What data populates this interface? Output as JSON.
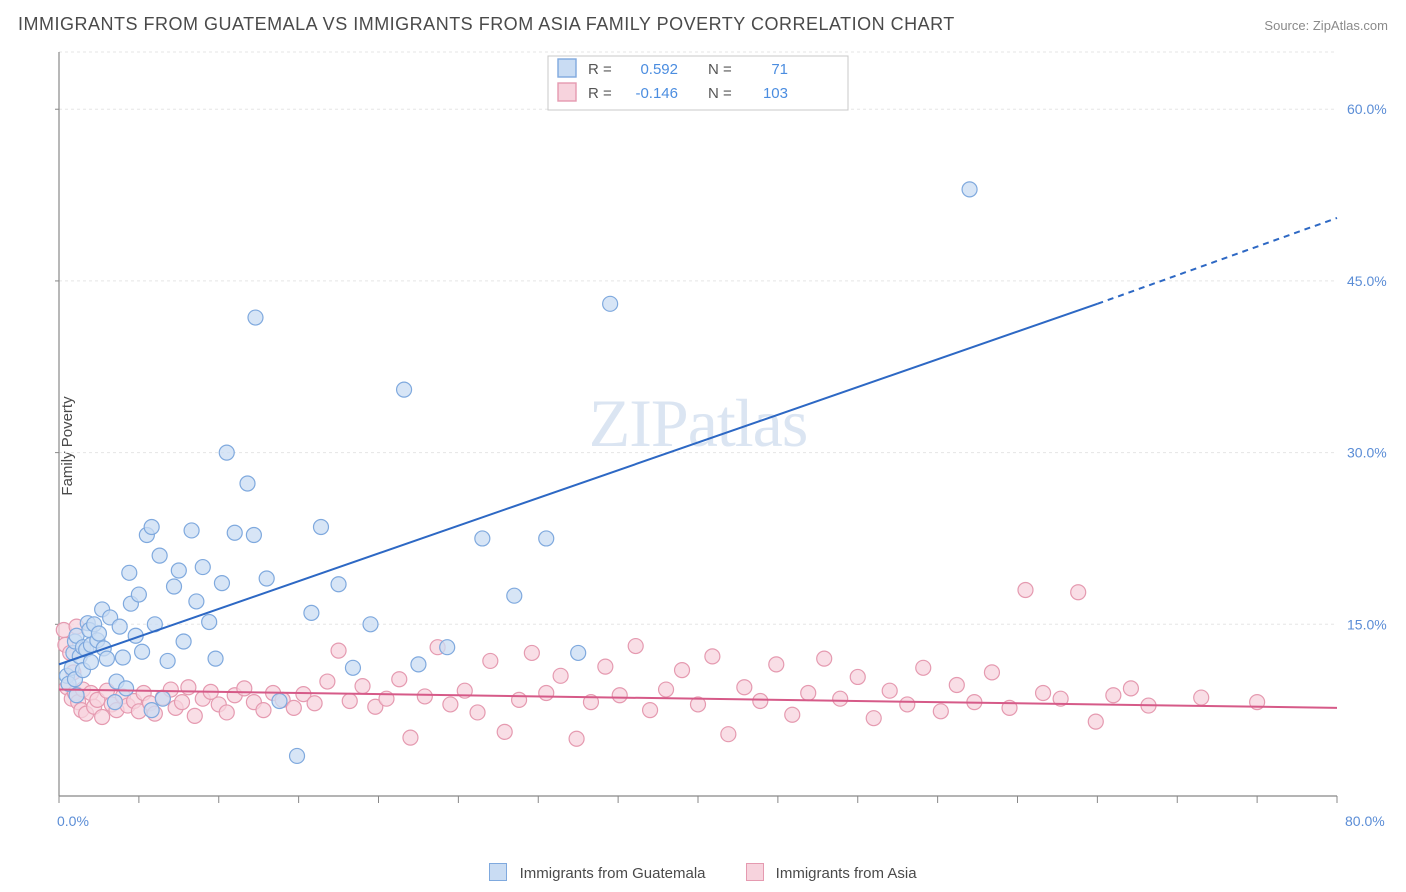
{
  "header": {
    "title": "IMMIGRANTS FROM GUATEMALA VS IMMIGRANTS FROM ASIA FAMILY POVERTY CORRELATION CHART",
    "source_label": "Source:",
    "source_value": "ZipAtlas.com"
  },
  "chart": {
    "type": "scatter-with-regression",
    "ylabel": "Family Poverty",
    "watermark": "ZIPatlas",
    "background_color": "#ffffff",
    "grid_color": "#e5e5e5",
    "axis_color": "#888888",
    "tick_label_color": "#5b8dd6",
    "tick_label_fontsize": 14,
    "title_color": "#4a4a4a",
    "title_fontsize": 18,
    "ylabel_fontsize": 15,
    "xlim": [
      0,
      80
    ],
    "ylim": [
      0,
      65
    ],
    "y_ticks": [
      15.0,
      30.0,
      45.0,
      60.0
    ],
    "y_tick_labels": [
      "15.0%",
      "30.0%",
      "45.0%",
      "60.0%"
    ],
    "x_start_label": "0.0%",
    "x_end_label": "80.0%",
    "x_minor_tick_step": 5,
    "marker_radius": 7.5,
    "marker_stroke_width": 1.2,
    "regression_line_width": 2,
    "series": [
      {
        "id": "guatemala",
        "label": "Immigrants from Guatemala",
        "fill": "#c9dcf3",
        "stroke": "#7fa9de",
        "line_color": "#2d68c4",
        "R": "0.592",
        "N": "71",
        "regression": {
          "x1": 0,
          "y1": 11.5,
          "x2": 65,
          "y2": 43,
          "dash_from_x": 65,
          "dash_to_x": 80,
          "dash_to_y": 50.5
        },
        "points": [
          [
            0.5,
            10.5
          ],
          [
            0.6,
            9.8
          ],
          [
            0.8,
            11.2
          ],
          [
            0.9,
            12.5
          ],
          [
            1.0,
            13.5
          ],
          [
            1.0,
            10.2
          ],
          [
            1.1,
            14.0
          ],
          [
            1.1,
            8.8
          ],
          [
            1.3,
            12.2
          ],
          [
            1.5,
            13.0
          ],
          [
            1.5,
            11.0
          ],
          [
            1.7,
            12.8
          ],
          [
            1.8,
            15.1
          ],
          [
            1.9,
            14.5
          ],
          [
            2.0,
            11.7
          ],
          [
            2.0,
            13.2
          ],
          [
            2.2,
            15.0
          ],
          [
            2.4,
            13.6
          ],
          [
            2.5,
            14.2
          ],
          [
            2.7,
            16.3
          ],
          [
            2.8,
            12.9
          ],
          [
            3.0,
            12.0
          ],
          [
            3.2,
            15.6
          ],
          [
            3.5,
            8.2
          ],
          [
            3.6,
            10.0
          ],
          [
            3.8,
            14.8
          ],
          [
            4.0,
            12.1
          ],
          [
            4.2,
            9.4
          ],
          [
            4.4,
            19.5
          ],
          [
            4.5,
            16.8
          ],
          [
            4.8,
            14.0
          ],
          [
            5.0,
            17.6
          ],
          [
            5.2,
            12.6
          ],
          [
            5.5,
            22.8
          ],
          [
            5.8,
            23.5
          ],
          [
            5.8,
            7.5
          ],
          [
            6.0,
            15.0
          ],
          [
            6.3,
            21.0
          ],
          [
            6.5,
            8.5
          ],
          [
            6.8,
            11.8
          ],
          [
            7.2,
            18.3
          ],
          [
            7.5,
            19.7
          ],
          [
            7.8,
            13.5
          ],
          [
            8.3,
            23.2
          ],
          [
            8.6,
            17.0
          ],
          [
            9.0,
            20.0
          ],
          [
            9.4,
            15.2
          ],
          [
            9.8,
            12.0
          ],
          [
            10.2,
            18.6
          ],
          [
            10.5,
            30.0
          ],
          [
            11.0,
            23.0
          ],
          [
            11.8,
            27.3
          ],
          [
            12.2,
            22.8
          ],
          [
            12.3,
            41.8
          ],
          [
            13.0,
            19.0
          ],
          [
            13.8,
            8.3
          ],
          [
            14.9,
            3.5
          ],
          [
            15.8,
            16.0
          ],
          [
            16.4,
            23.5
          ],
          [
            17.5,
            18.5
          ],
          [
            18.4,
            11.2
          ],
          [
            19.5,
            15.0
          ],
          [
            21.6,
            35.5
          ],
          [
            22.5,
            11.5
          ],
          [
            24.3,
            13.0
          ],
          [
            26.5,
            22.5
          ],
          [
            28.5,
            17.5
          ],
          [
            30.5,
            22.5
          ],
          [
            32.5,
            12.5
          ],
          [
            34.5,
            43.0
          ],
          [
            57.0,
            53.0
          ]
        ]
      },
      {
        "id": "asia",
        "label": "Immigrants from Asia",
        "fill": "#f7d3dd",
        "stroke": "#e59ab0",
        "line_color": "#d65a88",
        "R": "-0.146",
        "N": "103",
        "regression": {
          "x1": 0,
          "y1": 9.3,
          "x2": 80,
          "y2": 7.7
        },
        "points": [
          [
            0.3,
            14.5
          ],
          [
            0.4,
            13.2
          ],
          [
            0.5,
            9.5
          ],
          [
            0.7,
            12.5
          ],
          [
            0.8,
            8.5
          ],
          [
            0.9,
            10.8
          ],
          [
            1.0,
            9.0
          ],
          [
            1.1,
            14.8
          ],
          [
            1.2,
            8.2
          ],
          [
            1.4,
            7.5
          ],
          [
            1.5,
            9.3
          ],
          [
            1.7,
            7.2
          ],
          [
            2.0,
            9.0
          ],
          [
            2.2,
            7.8
          ],
          [
            2.4,
            8.4
          ],
          [
            2.7,
            6.9
          ],
          [
            3.0,
            9.2
          ],
          [
            3.3,
            8.0
          ],
          [
            3.6,
            7.5
          ],
          [
            4.0,
            8.7
          ],
          [
            4.3,
            7.9
          ],
          [
            4.7,
            8.3
          ],
          [
            5.0,
            7.4
          ],
          [
            5.3,
            9.0
          ],
          [
            5.7,
            8.1
          ],
          [
            6.0,
            7.2
          ],
          [
            6.5,
            8.6
          ],
          [
            7.0,
            9.3
          ],
          [
            7.3,
            7.7
          ],
          [
            7.7,
            8.2
          ],
          [
            8.1,
            9.5
          ],
          [
            8.5,
            7.0
          ],
          [
            9.0,
            8.5
          ],
          [
            9.5,
            9.1
          ],
          [
            10.0,
            8.0
          ],
          [
            10.5,
            7.3
          ],
          [
            11.0,
            8.8
          ],
          [
            11.6,
            9.4
          ],
          [
            12.2,
            8.2
          ],
          [
            12.8,
            7.5
          ],
          [
            13.4,
            9.0
          ],
          [
            14.0,
            8.4
          ],
          [
            14.7,
            7.7
          ],
          [
            15.3,
            8.9
          ],
          [
            16.0,
            8.1
          ],
          [
            16.8,
            10.0
          ],
          [
            17.5,
            12.7
          ],
          [
            18.2,
            8.3
          ],
          [
            19.0,
            9.6
          ],
          [
            19.8,
            7.8
          ],
          [
            20.5,
            8.5
          ],
          [
            21.3,
            10.2
          ],
          [
            22.0,
            5.1
          ],
          [
            22.9,
            8.7
          ],
          [
            23.7,
            13.0
          ],
          [
            24.5,
            8.0
          ],
          [
            25.4,
            9.2
          ],
          [
            26.2,
            7.3
          ],
          [
            27.0,
            11.8
          ],
          [
            27.9,
            5.6
          ],
          [
            28.8,
            8.4
          ],
          [
            29.6,
            12.5
          ],
          [
            30.5,
            9.0
          ],
          [
            31.4,
            10.5
          ],
          [
            32.4,
            5.0
          ],
          [
            33.3,
            8.2
          ],
          [
            34.2,
            11.3
          ],
          [
            35.1,
            8.8
          ],
          [
            36.1,
            13.1
          ],
          [
            37.0,
            7.5
          ],
          [
            38.0,
            9.3
          ],
          [
            39.0,
            11.0
          ],
          [
            40.0,
            8.0
          ],
          [
            40.9,
            12.2
          ],
          [
            41.9,
            5.4
          ],
          [
            42.9,
            9.5
          ],
          [
            43.9,
            8.3
          ],
          [
            44.9,
            11.5
          ],
          [
            45.9,
            7.1
          ],
          [
            46.9,
            9.0
          ],
          [
            47.9,
            12.0
          ],
          [
            48.9,
            8.5
          ],
          [
            50.0,
            10.4
          ],
          [
            51.0,
            6.8
          ],
          [
            52.0,
            9.2
          ],
          [
            53.1,
            8.0
          ],
          [
            54.1,
            11.2
          ],
          [
            55.2,
            7.4
          ],
          [
            56.2,
            9.7
          ],
          [
            57.3,
            8.2
          ],
          [
            58.4,
            10.8
          ],
          [
            59.5,
            7.7
          ],
          [
            60.5,
            18.0
          ],
          [
            61.6,
            9.0
          ],
          [
            62.7,
            8.5
          ],
          [
            63.8,
            17.8
          ],
          [
            64.9,
            6.5
          ],
          [
            66.0,
            8.8
          ],
          [
            67.1,
            9.4
          ],
          [
            68.2,
            7.9
          ],
          [
            71.5,
            8.6
          ],
          [
            75.0,
            8.2
          ]
        ]
      }
    ]
  },
  "bottom_legend": {
    "series1": "Immigrants from Guatemala",
    "series2": "Immigrants from Asia"
  },
  "top_legend": {
    "r_label": "R =",
    "n_label": "N ="
  }
}
